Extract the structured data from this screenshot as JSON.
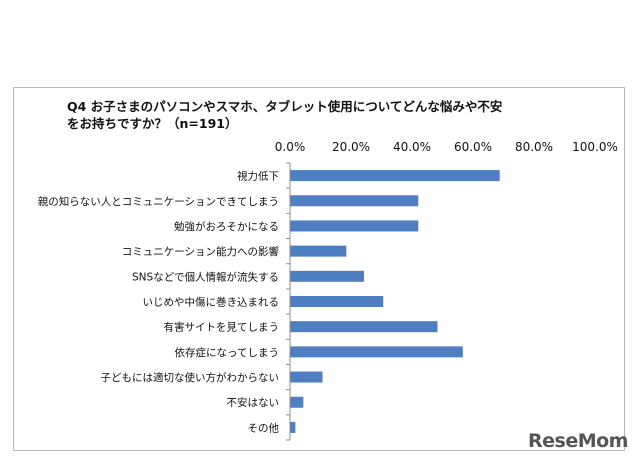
{
  "chart_data": {
    "type": "bar",
    "orientation": "horizontal",
    "title_lines": [
      "Q4 お子さまのパソコンやスマホ、タブレット使用についてどんな悩みや不安",
      "をお持ちですか？（n=191）"
    ],
    "x_ticks": [
      "0.0%",
      "20.0%",
      "40.0%",
      "60.0%",
      "80.0%",
      "100.0%"
    ],
    "xlim": [
      0,
      100
    ],
    "categories": [
      "視力低下",
      "親の知らない人とコミュニケーションできてしまう",
      "勉強がおろそかになる",
      "コミュニケーション能力への影響",
      "SNSなどで個人情報が流失する",
      "いじめや中傷に巻き込まれる",
      "有害サイトを見てしまう",
      "依存症になってしまう",
      "子どもには適切な使い方がわからない",
      "不安はない",
      "その他"
    ],
    "values": [
      68.6,
      41.9,
      41.9,
      18.3,
      24.1,
      30.4,
      48.2,
      56.5,
      10.5,
      4.2,
      1.6
    ],
    "bar_color": "#4f7ec2",
    "grid": false
  },
  "watermark": "ReseMom"
}
